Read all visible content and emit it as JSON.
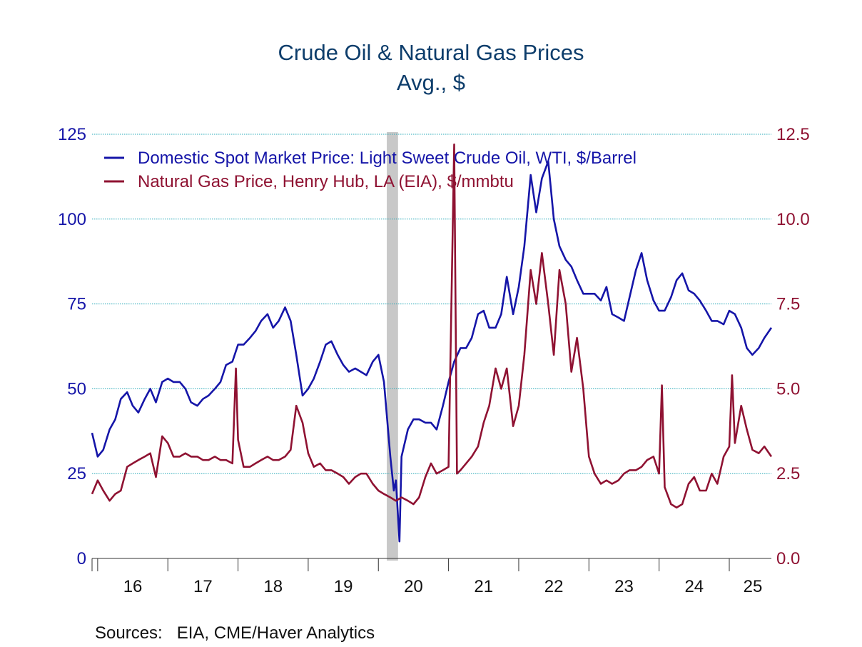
{
  "chart_data": {
    "type": "line",
    "title": "Crude Oil & Natural Gas Prices",
    "subtitle": "Avg., $",
    "source": "Sources:   EIA, CME/Haver Analytics",
    "x_tick_labels": [
      "16",
      "17",
      "18",
      "19",
      "20",
      "21",
      "22",
      "23",
      "24",
      "25"
    ],
    "x_range": [
      2015.92,
      2025.6
    ],
    "y_left": {
      "range": [
        0,
        125
      ],
      "ticks": [
        "0",
        "25",
        "50",
        "75",
        "100",
        "125"
      ],
      "color": "#1515a8"
    },
    "y_right": {
      "range": [
        0,
        12.5
      ],
      "ticks": [
        "0.0",
        "2.5",
        "5.0",
        "7.5",
        "10.0",
        "12.5"
      ],
      "color": "#8f1232"
    },
    "grid": true,
    "legend_placement": "top-left",
    "recession_shading": {
      "start": 2020.12,
      "end": 2020.28,
      "color": "#c8c8c8"
    },
    "series": [
      {
        "name": "Domestic Spot Market Price: Light Sweet Crude Oil, WTI, $/Barrel",
        "axis": "left",
        "color": "#1515a8",
        "x": [
          2015.92,
          2016.0,
          2016.08,
          2016.17,
          2016.25,
          2016.33,
          2016.42,
          2016.5,
          2016.58,
          2016.67,
          2016.75,
          2016.83,
          2016.92,
          2017.0,
          2017.08,
          2017.17,
          2017.25,
          2017.33,
          2017.42,
          2017.5,
          2017.58,
          2017.67,
          2017.75,
          2017.83,
          2017.92,
          2018.0,
          2018.08,
          2018.17,
          2018.25,
          2018.33,
          2018.42,
          2018.5,
          2018.58,
          2018.67,
          2018.75,
          2018.83,
          2018.92,
          2019.0,
          2019.08,
          2019.17,
          2019.25,
          2019.33,
          2019.42,
          2019.5,
          2019.58,
          2019.67,
          2019.75,
          2019.83,
          2019.92,
          2020.0,
          2020.08,
          2020.17,
          2020.22,
          2020.25,
          2020.3,
          2020.33,
          2020.42,
          2020.5,
          2020.58,
          2020.67,
          2020.75,
          2020.83,
          2020.92,
          2021.0,
          2021.08,
          2021.17,
          2021.25,
          2021.33,
          2021.42,
          2021.5,
          2021.58,
          2021.67,
          2021.75,
          2021.83,
          2021.92,
          2022.0,
          2022.08,
          2022.17,
          2022.25,
          2022.33,
          2022.42,
          2022.5,
          2022.58,
          2022.67,
          2022.75,
          2022.83,
          2022.92,
          2023.0,
          2023.08,
          2023.17,
          2023.25,
          2023.33,
          2023.42,
          2023.5,
          2023.58,
          2023.67,
          2023.75,
          2023.83,
          2023.92,
          2024.0,
          2024.08,
          2024.17,
          2024.25,
          2024.33,
          2024.42,
          2024.5,
          2024.58,
          2024.67,
          2024.75,
          2024.83,
          2024.92,
          2025.0,
          2025.08,
          2025.17,
          2025.25,
          2025.33,
          2025.42,
          2025.5,
          2025.6
        ],
        "values": [
          37,
          30,
          32,
          38,
          41,
          47,
          49,
          45,
          43,
          47,
          50,
          46,
          52,
          53,
          52,
          52,
          50,
          46,
          45,
          47,
          48,
          50,
          52,
          57,
          58,
          63,
          63,
          65,
          67,
          70,
          72,
          68,
          70,
          74,
          70,
          60,
          48,
          50,
          53,
          58,
          63,
          64,
          60,
          57,
          55,
          56,
          55,
          54,
          58,
          60,
          52,
          30,
          20,
          23,
          5,
          30,
          38,
          41,
          41,
          40,
          40,
          38,
          45,
          52,
          58,
          62,
          62,
          65,
          72,
          73,
          68,
          68,
          72,
          83,
          72,
          80,
          92,
          113,
          102,
          112,
          117,
          100,
          92,
          88,
          86,
          82,
          78,
          78,
          78,
          76,
          80,
          72,
          71,
          70,
          77,
          85,
          90,
          82,
          76,
          73,
          73,
          77,
          82,
          84,
          79,
          78,
          76,
          73,
          70,
          70,
          69,
          73,
          72,
          68,
          62,
          60,
          62,
          65,
          68
        ]
      },
      {
        "name": "Natural Gas Price, Henry Hub, LA (EIA), $/mmbtu",
        "axis": "right",
        "color": "#8f1232",
        "x": [
          2015.92,
          2016.0,
          2016.08,
          2016.17,
          2016.25,
          2016.33,
          2016.42,
          2016.5,
          2016.58,
          2016.67,
          2016.75,
          2016.83,
          2016.92,
          2017.0,
          2017.08,
          2017.17,
          2017.25,
          2017.33,
          2017.42,
          2017.5,
          2017.58,
          2017.67,
          2017.75,
          2017.83,
          2017.92,
          2017.97,
          2018.0,
          2018.08,
          2018.17,
          2018.25,
          2018.33,
          2018.42,
          2018.5,
          2018.58,
          2018.67,
          2018.75,
          2018.83,
          2018.92,
          2019.0,
          2019.08,
          2019.17,
          2019.25,
          2019.33,
          2019.42,
          2019.5,
          2019.58,
          2019.67,
          2019.75,
          2019.83,
          2019.92,
          2020.0,
          2020.08,
          2020.17,
          2020.25,
          2020.33,
          2020.42,
          2020.5,
          2020.58,
          2020.67,
          2020.75,
          2020.83,
          2020.92,
          2021.0,
          2021.08,
          2021.12,
          2021.17,
          2021.25,
          2021.33,
          2021.42,
          2021.5,
          2021.58,
          2021.67,
          2021.75,
          2021.83,
          2021.92,
          2022.0,
          2022.08,
          2022.17,
          2022.25,
          2022.33,
          2022.42,
          2022.5,
          2022.58,
          2022.67,
          2022.75,
          2022.83,
          2022.92,
          2023.0,
          2023.08,
          2023.17,
          2023.25,
          2023.33,
          2023.42,
          2023.5,
          2023.58,
          2023.67,
          2023.75,
          2023.83,
          2023.92,
          2024.0,
          2024.04,
          2024.08,
          2024.17,
          2024.25,
          2024.33,
          2024.42,
          2024.5,
          2024.58,
          2024.67,
          2024.75,
          2024.83,
          2024.92,
          2025.0,
          2025.04,
          2025.08,
          2025.17,
          2025.25,
          2025.33,
          2025.42,
          2025.5,
          2025.6
        ],
        "values": [
          1.9,
          2.3,
          2.0,
          1.7,
          1.9,
          2.0,
          2.7,
          2.8,
          2.9,
          3.0,
          3.1,
          2.4,
          3.6,
          3.4,
          3.0,
          3.0,
          3.1,
          3.0,
          3.0,
          2.9,
          2.9,
          3.0,
          2.9,
          2.9,
          2.8,
          5.6,
          3.5,
          2.7,
          2.7,
          2.8,
          2.9,
          3.0,
          2.9,
          2.9,
          3.0,
          3.2,
          4.5,
          4.0,
          3.1,
          2.7,
          2.8,
          2.6,
          2.6,
          2.5,
          2.4,
          2.2,
          2.4,
          2.5,
          2.5,
          2.2,
          2.0,
          1.9,
          1.8,
          1.7,
          1.8,
          1.7,
          1.6,
          1.8,
          2.4,
          2.8,
          2.5,
          2.6,
          2.7,
          12.2,
          2.5,
          2.6,
          2.8,
          3.0,
          3.3,
          4.0,
          4.5,
          5.6,
          5.0,
          5.6,
          3.9,
          4.5,
          6.0,
          8.5,
          7.5,
          9.0,
          7.5,
          6.0,
          8.5,
          7.5,
          5.5,
          6.5,
          5.0,
          3.0,
          2.5,
          2.2,
          2.3,
          2.2,
          2.3,
          2.5,
          2.6,
          2.6,
          2.7,
          2.9,
          3.0,
          2.5,
          5.1,
          2.1,
          1.6,
          1.5,
          1.6,
          2.2,
          2.4,
          2.0,
          2.0,
          2.5,
          2.2,
          3.0,
          3.3,
          5.4,
          3.4,
          4.5,
          3.8,
          3.2,
          3.1,
          3.3,
          3.0
        ]
      }
    ]
  }
}
